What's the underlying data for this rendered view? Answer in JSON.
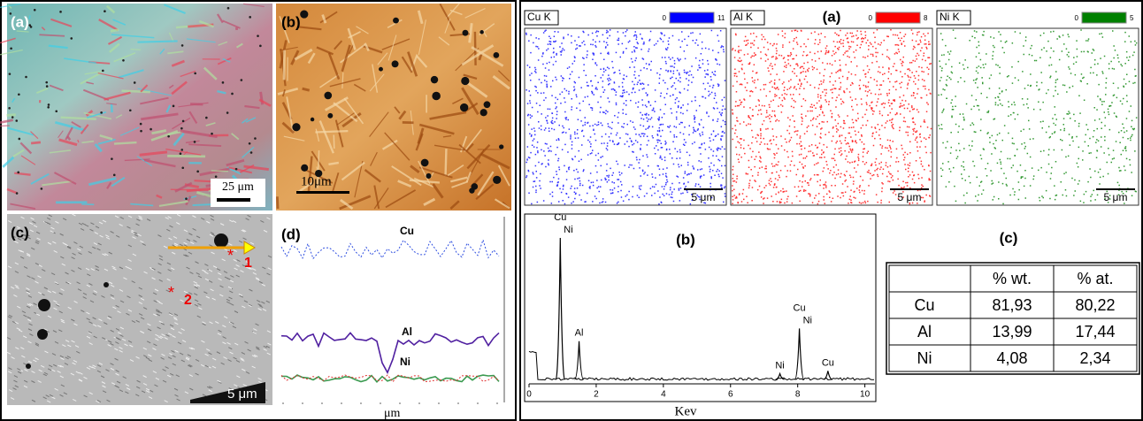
{
  "left_figure": {
    "panel_a": {
      "label": "(a)",
      "scale_bar": "25 μm"
    },
    "panel_b": {
      "label": "(b)",
      "scale_bar": "10μm"
    },
    "panel_c": {
      "label": "(c)",
      "scale_bar": "5 μm",
      "points": [
        "1",
        "2"
      ]
    },
    "panel_d": {
      "label": "(d)",
      "profiles": [
        "Cu",
        "Al",
        "Ni"
      ],
      "x_unit": "μm"
    }
  },
  "right_figure": {
    "maps": {
      "label": "(a)",
      "items": [
        {
          "name": "Cu K",
          "min": 0,
          "max": 11,
          "color": "#0000ff",
          "scale_bar": "5 μm"
        },
        {
          "name": "Al K",
          "min": 0,
          "max": 8,
          "color": "#ff0000",
          "scale_bar": "5 μm"
        },
        {
          "name": "Ni K",
          "min": 0,
          "max": 5,
          "color": "#008000",
          "scale_bar": "5 μm"
        }
      ]
    },
    "spectrum": {
      "label": "(b)",
      "x_label": "Kev",
      "xlim": [
        0,
        10.3
      ],
      "xticks": [
        0,
        2,
        4,
        6,
        8,
        10
      ],
      "peaks": [
        {
          "x": 0.93,
          "intensity": 100,
          "labels": [
            "Cu",
            "Ni"
          ]
        },
        {
          "x": 1.49,
          "intensity": 27,
          "labels": [
            "Al"
          ]
        },
        {
          "x": 7.47,
          "intensity": 4,
          "labels": [
            "Ni"
          ]
        },
        {
          "x": 8.05,
          "intensity": 36,
          "labels": [
            "Cu",
            "Ni"
          ]
        },
        {
          "x": 8.9,
          "intensity": 6,
          "labels": [
            "Cu"
          ]
        }
      ]
    },
    "table": {
      "label": "(c)",
      "header": [
        "% wt.",
        "% at."
      ],
      "rows": [
        [
          "Cu",
          "81,93",
          "80,22"
        ],
        [
          "Al",
          "13,99",
          "17,44"
        ],
        [
          "Ni",
          "4,08",
          "2,34"
        ]
      ]
    }
  }
}
